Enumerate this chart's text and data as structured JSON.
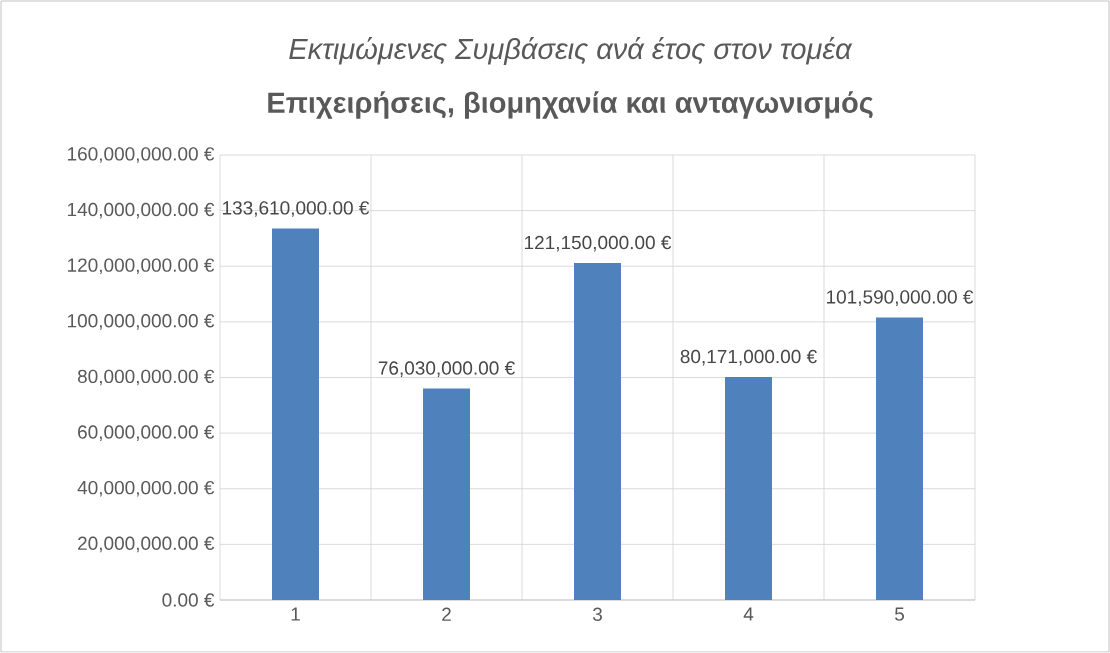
{
  "chart_data": {
    "type": "bar",
    "title": "Εκτιμώμενες Συμβάσεις ανά έτος στον τομέα",
    "subtitle": "Επιχειρήσεις, βιομηχανία και ανταγωνισμός",
    "categories": [
      "1",
      "2",
      "3",
      "4",
      "5"
    ],
    "values": [
      133610000,
      76030000,
      121150000,
      80171000,
      101590000
    ],
    "value_labels": [
      "133,610,000.00 €",
      "76,030,000.00 €",
      "121,150,000.00 €",
      "80,171,000.00 €",
      "101,590,000.00 €"
    ],
    "color": "#4f81bd",
    "ylim": [
      0,
      160000000
    ],
    "yticks": [
      {
        "value": 0,
        "label": "0.00 €"
      },
      {
        "value": 20000000,
        "label": "20,000,000.00 €"
      },
      {
        "value": 40000000,
        "label": "40,000,000.00 €"
      },
      {
        "value": 60000000,
        "label": "60,000,000.00 €"
      },
      {
        "value": 80000000,
        "label": "80,000,000.00 €"
      },
      {
        "value": 100000000,
        "label": "100,000,000.00 €"
      },
      {
        "value": 120000000,
        "label": "120,000,000.00 €"
      },
      {
        "value": 140000000,
        "label": "140,000,000.00 €"
      },
      {
        "value": 160000000,
        "label": "160,000,000.00 €"
      }
    ],
    "grid": true
  }
}
